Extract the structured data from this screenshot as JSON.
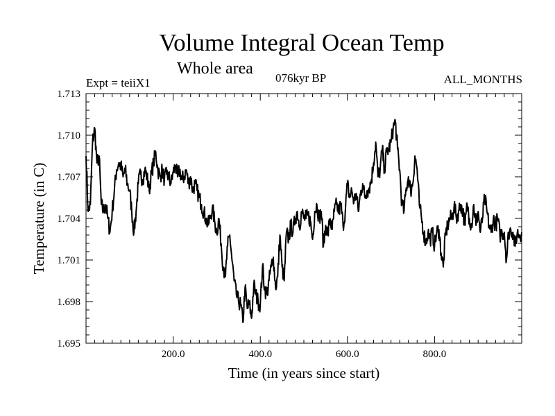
{
  "chart_data": {
    "type": "line",
    "title": "Volume Integral Ocean Temp",
    "subtitle": "Whole area",
    "experiment": "Expt = teiiX1",
    "period": "076kyr BP",
    "months": "ALL_MONTHS",
    "xlabel": "Time (in years since start)",
    "ylabel": "Temperature (in C)",
    "xlim": [
      0,
      1000
    ],
    "ylim": [
      1.695,
      1.713
    ],
    "xticks": [
      200,
      400,
      600,
      800
    ],
    "xtick_labels": [
      "200.0",
      "400.0",
      "600.0",
      "800.0"
    ],
    "yticks": [
      1.695,
      1.698,
      1.701,
      1.704,
      1.707,
      1.71,
      1.713
    ],
    "ytick_labels": [
      "1.695",
      "1.698",
      "1.701",
      "1.704",
      "1.707",
      "1.710",
      "1.713"
    ],
    "grid": false,
    "series": [
      {
        "color": "#000000",
        "x": [
          0,
          5,
          10,
          15,
          20,
          25,
          30,
          35,
          40,
          45,
          50,
          55,
          60,
          65,
          70,
          75,
          80,
          85,
          90,
          95,
          100,
          105,
          110,
          115,
          120,
          125,
          130,
          135,
          140,
          145,
          150,
          155,
          160,
          165,
          170,
          175,
          180,
          185,
          190,
          195,
          200,
          205,
          210,
          215,
          220,
          225,
          230,
          235,
          240,
          245,
          250,
          255,
          260,
          265,
          270,
          275,
          280,
          285,
          290,
          295,
          300,
          305,
          310,
          315,
          320,
          325,
          330,
          335,
          340,
          345,
          350,
          355,
          360,
          365,
          370,
          375,
          380,
          385,
          390,
          395,
          400,
          405,
          410,
          415,
          420,
          425,
          430,
          435,
          440,
          445,
          450,
          455,
          460,
          465,
          470,
          475,
          480,
          485,
          490,
          495,
          500,
          505,
          510,
          515,
          520,
          525,
          530,
          535,
          540,
          545,
          550,
          555,
          560,
          565,
          570,
          575,
          580,
          585,
          590,
          595,
          600,
          605,
          610,
          615,
          620,
          625,
          630,
          635,
          640,
          645,
          650,
          655,
          660,
          665,
          670,
          675,
          680,
          685,
          690,
          695,
          700,
          705,
          710,
          715,
          720,
          725,
          730,
          735,
          740,
          745,
          750,
          755,
          760,
          765,
          770,
          775,
          780,
          785,
          790,
          795,
          800,
          805,
          810,
          815,
          820,
          825,
          830,
          835,
          840,
          845,
          850,
          855,
          860,
          865,
          870,
          875,
          880,
          885,
          890,
          895,
          900,
          905,
          910,
          915,
          920,
          925,
          930,
          935,
          940,
          945,
          950,
          955,
          960,
          965,
          970,
          975,
          980,
          985,
          990,
          995,
          1000
        ],
        "y": [
          1.7085,
          1.7045,
          1.705,
          1.7095,
          1.7105,
          1.708,
          1.7085,
          1.705,
          1.7045,
          1.705,
          1.704,
          1.703,
          1.7045,
          1.706,
          1.7075,
          1.708,
          1.7078,
          1.707,
          1.7075,
          1.7065,
          1.706,
          1.7045,
          1.703,
          1.7045,
          1.7065,
          1.7072,
          1.7068,
          1.7075,
          1.707,
          1.706,
          1.7072,
          1.708,
          1.7088,
          1.7075,
          1.707,
          1.7075,
          1.7068,
          1.7072,
          1.707,
          1.7065,
          1.7073,
          1.7078,
          1.707,
          1.7075,
          1.7068,
          1.707,
          1.7075,
          1.7065,
          1.707,
          1.706,
          1.7065,
          1.706,
          1.7055,
          1.705,
          1.7045,
          1.704,
          1.7035,
          1.704,
          1.7048,
          1.7038,
          1.703,
          1.704,
          1.7022,
          1.7005,
          1.6998,
          1.702,
          1.7028,
          1.701,
          1.6995,
          1.6985,
          1.698,
          1.6978,
          1.6965,
          1.699,
          1.6975,
          1.6978,
          1.6968,
          1.6992,
          1.6985,
          1.698,
          1.6978,
          1.7005,
          1.699,
          1.6985,
          1.6995,
          1.7005,
          1.7012,
          1.699,
          1.6998,
          1.7028,
          1.7005,
          1.6995,
          1.703,
          1.7025,
          1.7035,
          1.703,
          1.704,
          1.7045,
          1.7035,
          1.7045,
          1.704,
          1.704,
          1.7042,
          1.7038,
          1.7025,
          1.7045,
          1.705,
          1.704,
          1.7045,
          1.702,
          1.7035,
          1.7028,
          1.704,
          1.7032,
          1.7045,
          1.705,
          1.7045,
          1.705,
          1.7035,
          1.7045,
          1.7065,
          1.7055,
          1.706,
          1.7052,
          1.7058,
          1.7045,
          1.7058,
          1.7065,
          1.7055,
          1.706,
          1.7062,
          1.7068,
          1.708,
          1.7095,
          1.707,
          1.7075,
          1.709,
          1.7075,
          1.7088,
          1.709,
          1.7095,
          1.7105,
          1.711,
          1.709,
          1.7075,
          1.705,
          1.7045,
          1.7062,
          1.707,
          1.706,
          1.7065,
          1.7085,
          1.7075,
          1.705,
          1.704,
          1.703,
          1.7022,
          1.703,
          1.7025,
          1.703,
          1.702,
          1.703,
          1.7032,
          1.7015,
          1.7005,
          1.7028,
          1.7035,
          1.704,
          1.704,
          1.705,
          1.704,
          1.7045,
          1.705,
          1.7045,
          1.7035,
          1.705,
          1.704,
          1.7035,
          1.705,
          1.7035,
          1.7045,
          1.703,
          1.704,
          1.7055,
          1.7045,
          1.7035,
          1.703,
          1.704,
          1.7035,
          1.704,
          1.7028,
          1.703,
          1.703,
          1.701,
          1.703,
          1.7032,
          1.703,
          1.702,
          1.703,
          1.7028,
          1.703
        ]
      }
    ]
  }
}
